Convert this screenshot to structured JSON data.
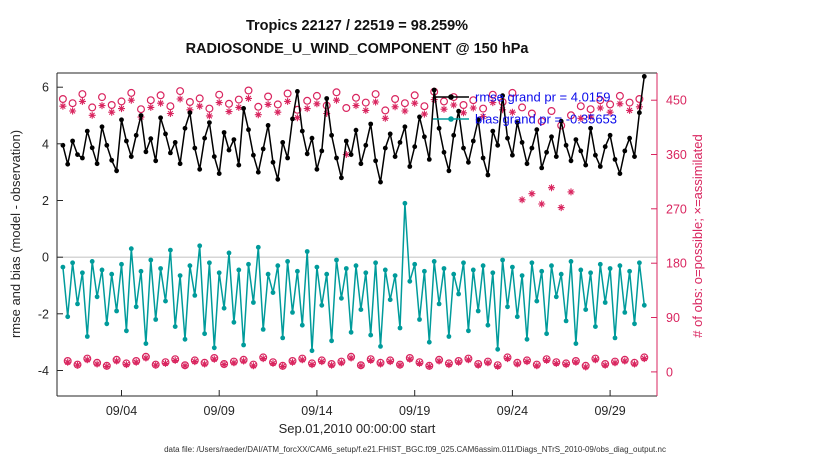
{
  "header": {
    "line1": "Tropics 22127 / 22519 = 98.259%",
    "line2": "RADIOSONDE_U_WIND_COMPONENT @ 150 hPa"
  },
  "axes": {
    "ylabel_left": "rmse and bias (model - observation)",
    "ylabel_right": "# of obs: o=possible; ×=assimilated",
    "xlabel": "Sep.01,2010 00:00:00 start",
    "yticks_left": [
      6,
      4,
      2,
      0,
      -2,
      -4
    ],
    "yticks_right": [
      450,
      360,
      270,
      180,
      90,
      0
    ],
    "xticks": [
      {
        "day": 3,
        "label": "09/04"
      },
      {
        "day": 8,
        "label": "09/09"
      },
      {
        "day": 13,
        "label": "09/14"
      },
      {
        "day": 18,
        "label": "09/19"
      },
      {
        "day": 23,
        "label": "09/24"
      },
      {
        "day": 28,
        "label": "09/29"
      }
    ]
  },
  "legend": {
    "position": "top-right-inside",
    "items": [
      {
        "name": "rmse",
        "label": "rmse grand pr = 4.0159",
        "color": "#000000"
      },
      {
        "name": "bias",
        "label": "bias grand pr = -0.35653",
        "color": "#009B9B"
      }
    ]
  },
  "footer": {
    "text": "data file: /Users/raeder/DAI/ATM_forcXX/CAM6_setup/f.e21.FHIST_BGC.f09_025.CAM6assim.011/Diags_NTrS_2010-09/obs_diag_output.nc"
  },
  "colors": {
    "rmse": "#000000",
    "bias": "#009B9B",
    "obs": "#D9255F",
    "legend_text": "#0B0BEB",
    "zero_line": "#C9C9C9",
    "axis": "#262626"
  },
  "chart_data": {
    "type": "line",
    "title": [
      "Tropics 22127 / 22519 = 98.259%",
      "RADIOSONDE_U_WIND_COMPONENT @ 150 hPa"
    ],
    "xlabel": "Sep.01,2010 00:00:00 start",
    "ylabel_left": "rmse and bias (model - observation)",
    "ylabel_right": "# of obs: o=possible; ×=assimilated",
    "grid": false,
    "legend_position": "top-right-inside",
    "xlim": [
      -0.3,
      30.4
    ],
    "ylim_left": [
      -4.9,
      6.5
    ],
    "ylim_right": [
      -40,
      495
    ],
    "x_unit": "days since Sep.01,2010 00:00:00, 4 analysis times per day",
    "x": [
      0,
      0.25,
      0.5,
      0.75,
      1,
      1.25,
      1.5,
      1.75,
      2,
      2.25,
      2.5,
      2.75,
      3,
      3.25,
      3.5,
      3.75,
      4,
      4.25,
      4.5,
      4.75,
      5,
      5.25,
      5.5,
      5.75,
      6,
      6.25,
      6.5,
      6.75,
      7,
      7.25,
      7.5,
      7.75,
      8,
      8.25,
      8.5,
      8.75,
      9,
      9.25,
      9.5,
      9.75,
      10,
      10.25,
      10.5,
      10.75,
      11,
      11.25,
      11.5,
      11.75,
      12,
      12.25,
      12.5,
      12.75,
      13,
      13.25,
      13.5,
      13.75,
      14,
      14.25,
      14.5,
      14.75,
      15,
      15.25,
      15.5,
      15.75,
      16,
      16.25,
      16.5,
      16.75,
      17,
      17.25,
      17.5,
      17.75,
      18,
      18.25,
      18.5,
      18.75,
      19,
      19.25,
      19.5,
      19.75,
      20,
      20.25,
      20.5,
      20.75,
      21,
      21.25,
      21.5,
      21.75,
      22,
      22.25,
      22.5,
      22.75,
      23,
      23.25,
      23.5,
      23.75,
      24,
      24.25,
      24.5,
      24.75,
      25,
      25.25,
      25.5,
      25.75,
      26,
      26.25,
      26.5,
      26.75,
      27,
      27.25,
      27.5,
      27.75,
      28,
      28.25,
      28.5,
      28.75,
      29,
      29.25,
      29.5,
      29.75
    ],
    "series": [
      {
        "name": "rmse",
        "axis": "left",
        "marker": "filled-dot",
        "color": "#000000",
        "grand_value": 4.0159,
        "values": [
          3.95,
          3.28,
          4.1,
          3.62,
          3.5,
          4.45,
          3.86,
          3.3,
          4.6,
          3.95,
          3.42,
          3.05,
          4.85,
          4.1,
          3.55,
          4.3,
          5.0,
          3.72,
          4.18,
          3.4,
          4.92,
          4.35,
          3.68,
          4.05,
          3.3,
          4.55,
          5.1,
          3.85,
          3.1,
          4.2,
          4.75,
          3.55,
          2.95,
          4.4,
          3.78,
          4.15,
          3.25,
          5.25,
          4.5,
          3.6,
          3.0,
          3.82,
          4.65,
          3.35,
          2.75,
          4.05,
          3.5,
          4.88,
          5.85,
          4.45,
          3.65,
          4.2,
          3.1,
          3.75,
          5.6,
          4.3,
          3.5,
          2.8,
          4.1,
          3.62,
          4.48,
          3.3,
          3.95,
          4.7,
          3.4,
          2.65,
          3.85,
          4.35,
          3.55,
          4.05,
          4.6,
          3.2,
          3.9,
          4.95,
          4.25,
          3.45,
          5.9,
          4.55,
          3.7,
          3.05,
          4.3,
          5.15,
          3.85,
          3.35,
          4.1,
          4.85,
          3.5,
          2.9,
          4.45,
          3.95,
          5.7,
          4.2,
          3.6,
          4.75,
          4.05,
          3.3,
          3.85,
          4.5,
          3.15,
          3.7,
          4.25,
          3.55,
          4.8,
          3.95,
          3.4,
          4.15,
          3.75,
          3.25,
          4.55,
          3.6,
          3.2,
          3.9,
          4.3,
          3.45,
          2.95,
          3.75,
          4.2,
          3.55,
          5.1,
          6.38
        ]
      },
      {
        "name": "bias",
        "axis": "left",
        "marker": "filled-dot",
        "color": "#009B9B",
        "grand_value": -0.35653,
        "values": [
          -0.35,
          -2.1,
          -0.2,
          -1.65,
          -0.55,
          -2.8,
          -0.15,
          -1.4,
          -0.45,
          -2.35,
          -0.6,
          -1.9,
          -0.25,
          -2.6,
          0.3,
          -1.75,
          -0.5,
          -3.05,
          -0.1,
          -2.2,
          -0.4,
          -1.55,
          0.25,
          -2.45,
          -0.65,
          -2.9,
          -0.3,
          -1.35,
          0.4,
          -2.7,
          -0.2,
          -3.2,
          -0.55,
          -1.8,
          0.15,
          -2.3,
          -0.45,
          -3.1,
          -0.25,
          -1.6,
          0.35,
          -2.55,
          -0.6,
          -1.25,
          -0.3,
          -2.85,
          -0.15,
          -1.95,
          -0.5,
          -2.4,
          0.2,
          -3.3,
          -0.35,
          -1.7,
          -0.6,
          -2.95,
          -0.1,
          -1.45,
          -0.4,
          -2.65,
          -0.3,
          -1.85,
          -0.55,
          -2.75,
          -0.2,
          -3.15,
          -0.45,
          -1.5,
          -0.65,
          -2.5,
          1.9,
          -0.85,
          -0.25,
          -2.2,
          -0.5,
          -3.0,
          -0.15,
          -1.65,
          -0.4,
          -2.8,
          -0.6,
          -1.3,
          -0.2,
          -2.6,
          -0.45,
          -1.9,
          -0.3,
          -2.4,
          -0.55,
          -3.25,
          -0.1,
          -1.75,
          -0.35,
          -2.1,
          -0.65,
          -2.9,
          -0.2,
          -1.55,
          -0.5,
          -2.7,
          -0.3,
          -1.4,
          -0.6,
          -2.25,
          -0.15,
          -3.05,
          -0.45,
          -1.85,
          -0.55,
          -2.45,
          -0.25,
          -1.6,
          -0.4,
          -2.85,
          -0.3,
          -1.95,
          -0.5,
          -2.35,
          -0.2,
          -1.7
        ]
      },
      {
        "name": "possible_obs",
        "axis": "right",
        "marker": "o",
        "color": "#D9255F",
        "values": [
          452,
          18,
          445,
          12,
          460,
          22,
          438,
          15,
          455,
          10,
          442,
          20,
          448,
          14,
          462,
          18,
          435,
          25,
          450,
          12,
          458,
          16,
          440,
          21,
          465,
          11,
          447,
          19,
          453,
          15,
          436,
          23,
          459,
          13,
          444,
          17,
          451,
          20,
          466,
          12,
          439,
          24,
          456,
          16,
          443,
          10,
          461,
          18,
          434,
          22,
          449,
          14,
          457,
          19,
          441,
          13,
          463,
          17,
          437,
          25,
          454,
          11,
          446,
          21,
          460,
          15,
          433,
          19,
          452,
          12,
          445,
          23,
          458,
          16,
          440,
          10,
          464,
          20,
          448,
          14,
          455,
          18,
          442,
          22,
          450,
          13,
          436,
          17,
          459,
          11,
          447,
          24,
          462,
          15,
          438,
          19,
          428,
          12,
          415,
          21,
          432,
          16,
          408,
          14,
          425,
          18,
          440,
          10,
          435,
          22,
          450,
          13,
          443,
          17,
          457,
          20,
          446,
          15,
          452,
          24
        ]
      },
      {
        "name": "assimilated_obs",
        "axis": "right",
        "marker": "asterisk",
        "color": "#D9255F",
        "values": [
          440,
          16,
          432,
          11,
          448,
          20,
          425,
          13,
          441,
          9,
          430,
          18,
          436,
          12,
          450,
          16,
          422,
          23,
          438,
          11,
          445,
          14,
          428,
          19,
          452,
          10,
          434,
          17,
          440,
          13,
          424,
          21,
          446,
          12,
          431,
          15,
          438,
          18,
          453,
          10,
          426,
          22,
          443,
          14,
          430,
          9,
          448,
          16,
          421,
          20,
          436,
          12,
          444,
          17,
          428,
          11,
          450,
          15,
          360,
          23,
          441,
          10,
          433,
          19,
          447,
          13,
          420,
          17,
          439,
          11,
          432,
          21,
          445,
          14,
          427,
          9,
          451,
          18,
          435,
          12,
          442,
          16,
          429,
          20,
          437,
          11,
          423,
          15,
          446,
          9,
          434,
          22,
          430,
          13,
          285,
          17,
          295,
          10,
          278,
          19,
          305,
          14,
          272,
          12,
          298,
          16,
          420,
          8,
          422,
          20,
          437,
          11,
          430,
          15,
          444,
          18,
          433,
          13,
          439,
          22
        ]
      }
    ]
  }
}
